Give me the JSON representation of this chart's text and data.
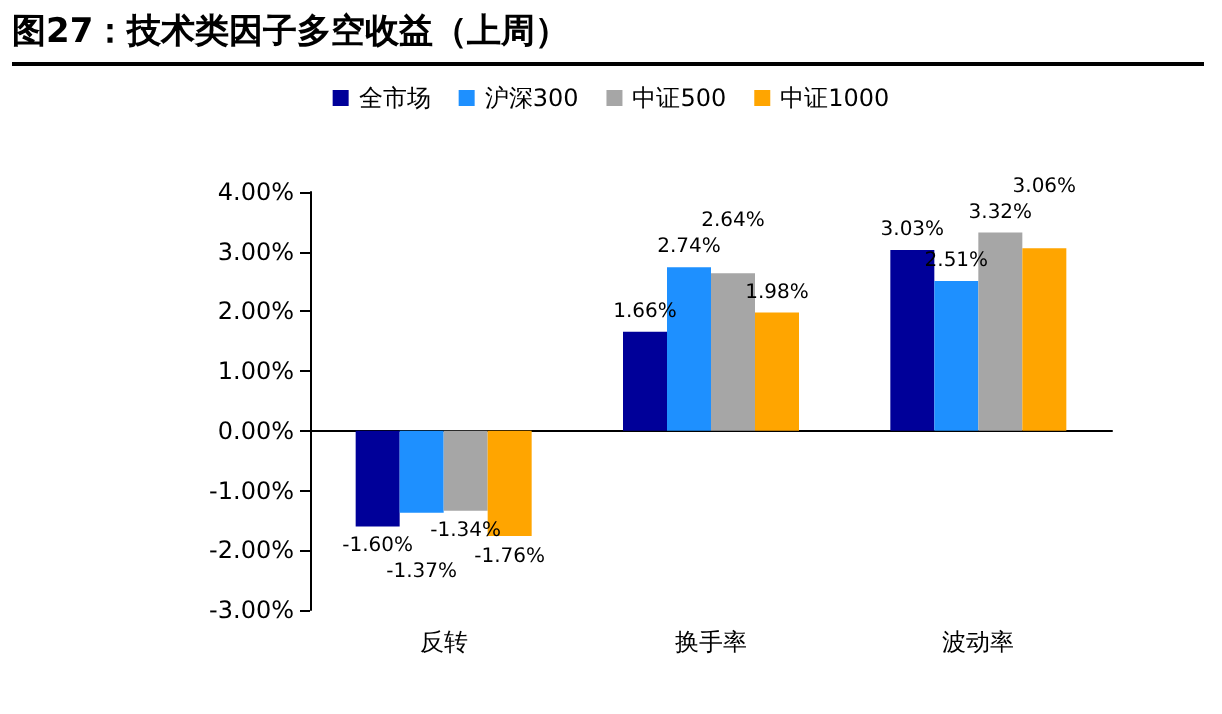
{
  "chart_data": {
    "type": "bar",
    "title": "图27：技术类因子多空收益（上周）",
    "categories": [
      "反转",
      "换手率",
      "波动率"
    ],
    "series": [
      {
        "name": "全市场",
        "color": "#000099",
        "values": [
          -1.6,
          1.66,
          3.03
        ],
        "value_labels": [
          "-1.60%",
          "1.66%",
          "3.03%"
        ]
      },
      {
        "name": "沪深300",
        "color": "#1e90ff",
        "values": [
          -1.37,
          2.74,
          2.51
        ],
        "value_labels": [
          "-1.37%",
          "2.74%",
          "2.51%"
        ]
      },
      {
        "name": "中证500",
        "color": "#a6a6a6",
        "values": [
          -1.34,
          2.64,
          3.32
        ],
        "value_labels": [
          "-1.34%",
          "2.64%",
          "3.32%"
        ]
      },
      {
        "name": "中证1000",
        "color": "#ffa500",
        "values": [
          -1.76,
          1.98,
          3.06
        ],
        "value_labels": [
          "-1.76%",
          "1.98%",
          "3.06%"
        ]
      }
    ],
    "ylim": [
      -3,
      4
    ],
    "yticks": [
      {
        "value": -3,
        "label": "-3.00%"
      },
      {
        "value": -2,
        "label": "-2.00%"
      },
      {
        "value": -1,
        "label": "-1.00%"
      },
      {
        "value": 0,
        "label": "0.00%"
      },
      {
        "value": 1,
        "label": "1.00%"
      },
      {
        "value": 2,
        "label": "2.00%"
      },
      {
        "value": 3,
        "label": "3.00%"
      },
      {
        "value": 4,
        "label": "4.00%"
      }
    ],
    "legend": "top"
  }
}
